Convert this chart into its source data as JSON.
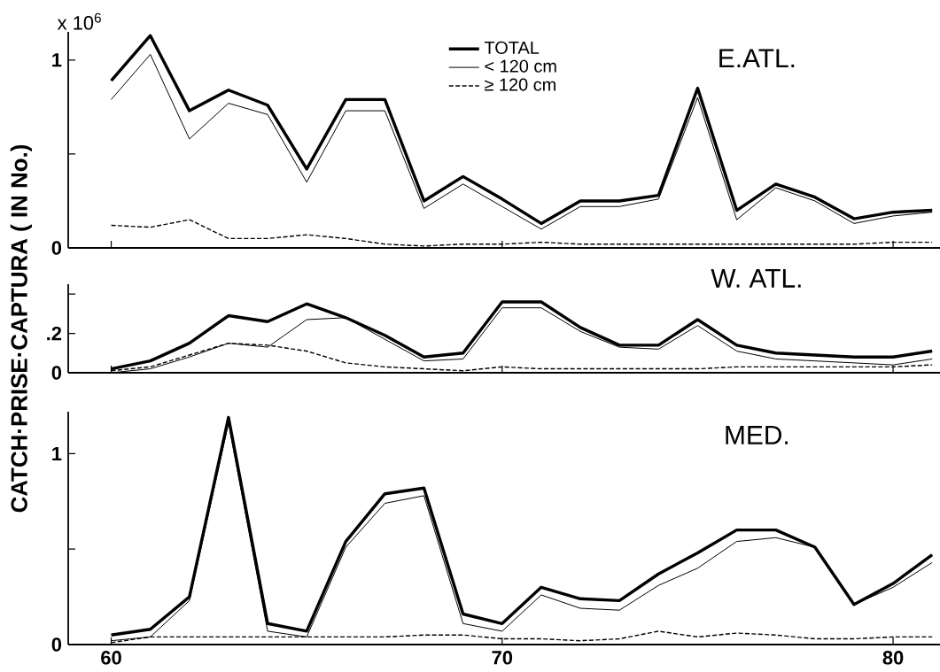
{
  "chart_data": [
    {
      "type": "line",
      "title": "E.ATL.",
      "annotations": [
        "x 10$^{6}$"
      ],
      "x": [
        60,
        61,
        62,
        63,
        64,
        65,
        66,
        67,
        68,
        69,
        70,
        71,
        72,
        73,
        74,
        75,
        76,
        77,
        78,
        79,
        80,
        81
      ],
      "xlim": [
        58.9,
        81.2
      ],
      "xticks": [
        60,
        70,
        80
      ],
      "ylim": [
        0,
        1.15
      ],
      "yticks": [
        0,
        {
          "value": 0.5,
          "label": null
        },
        1
      ],
      "tick_labels": "y",
      "legend": "top",
      "series": [
        {
          "name": "TOTAL",
          "color": "#000000",
          "line_style": "solid",
          "values": [
            0.89,
            1.13,
            0.73,
            0.84,
            0.76,
            0.42,
            0.79,
            0.79,
            0.25,
            0.38,
            0.26,
            0.13,
            0.25,
            0.25,
            0.28,
            0.85,
            0.2,
            0.34,
            0.27,
            0.155,
            0.19,
            0.2
          ]
        },
        {
          "name": "< 120 cm",
          "color": "#000000",
          "line_style": "solid",
          "values": [
            0.79,
            1.03,
            0.58,
            0.77,
            0.71,
            0.35,
            0.73,
            0.73,
            0.21,
            0.34,
            0.22,
            0.1,
            0.22,
            0.22,
            0.26,
            0.8,
            0.15,
            0.32,
            0.25,
            0.13,
            0.17,
            0.19
          ]
        },
        {
          "name": "≥ 120 cm",
          "color": "#000000",
          "line_style": "dashed",
          "values": [
            0.12,
            0.11,
            0.15,
            0.05,
            0.05,
            0.07,
            0.05,
            0.02,
            0.01,
            0.02,
            0.02,
            0.03,
            0.02,
            0.02,
            0.02,
            0.02,
            0.02,
            0.02,
            0.02,
            0.02,
            0.03,
            0.03
          ]
        }
      ]
    },
    {
      "type": "line",
      "title": "W. ATL.",
      "ylabel": "CATCH·PRISE·CAPTURA ( IN No.)",
      "x": [
        60,
        61,
        62,
        63,
        64,
        65,
        66,
        67,
        68,
        69,
        70,
        71,
        72,
        73,
        74,
        75,
        76,
        77,
        78,
        79,
        80,
        81
      ],
      "xlim": [
        58.9,
        81.2
      ],
      "xticks": [
        60,
        70,
        80
      ],
      "ylim": [
        0,
        0.45
      ],
      "yticks": [
        0,
        {
          "value": 0.2,
          "label": ".2"
        },
        {
          "value": 0.4,
          "label": null
        }
      ],
      "tick_labels": "y",
      "series": [
        {
          "color": "#000000",
          "line_style": "solid",
          "values": [
            0.02,
            0.06,
            0.15,
            0.29,
            0.26,
            0.35,
            0.28,
            0.19,
            0.08,
            0.1,
            0.36,
            0.36,
            0.23,
            0.14,
            0.14,
            0.27,
            0.14,
            0.1,
            0.09,
            0.08,
            0.08,
            0.11
          ]
        },
        {
          "color": "#000000",
          "line_style": "solid",
          "values": [
            0.0,
            0.02,
            0.08,
            0.15,
            0.13,
            0.27,
            0.28,
            0.17,
            0.06,
            0.07,
            0.33,
            0.33,
            0.21,
            0.13,
            0.12,
            0.24,
            0.11,
            0.07,
            0.06,
            0.05,
            0.04,
            0.07
          ]
        },
        {
          "color": "#000000",
          "line_style": "dashed",
          "values": [
            0.01,
            0.03,
            0.09,
            0.15,
            0.14,
            0.11,
            0.05,
            0.03,
            0.02,
            0.01,
            0.03,
            0.02,
            0.02,
            0.02,
            0.02,
            0.02,
            0.03,
            0.03,
            0.03,
            0.03,
            0.03,
            0.04
          ]
        }
      ]
    },
    {
      "type": "line",
      "title": "MED.",
      "x": [
        60,
        61,
        62,
        63,
        64,
        65,
        66,
        67,
        68,
        69,
        70,
        71,
        72,
        73,
        74,
        75,
        76,
        77,
        78,
        79,
        80,
        81
      ],
      "xlim": [
        58.9,
        81.2
      ],
      "xticks": [
        60,
        70,
        80
      ],
      "ylim": [
        0,
        1.22
      ],
      "yticks": [
        0,
        {
          "value": 0.5,
          "label": null
        },
        1
      ],
      "series": [
        {
          "color": "#000000",
          "line_style": "solid",
          "values": [
            0.05,
            0.08,
            0.25,
            1.19,
            0.11,
            0.07,
            0.54,
            0.79,
            0.82,
            0.16,
            0.11,
            0.3,
            0.24,
            0.23,
            0.37,
            0.48,
            0.6,
            0.6,
            0.51,
            0.21,
            0.32,
            0.47
          ]
        },
        {
          "color": "#000000",
          "line_style": "solid",
          "values": [
            0.02,
            0.04,
            0.23,
            1.16,
            0.07,
            0.04,
            0.51,
            0.74,
            0.78,
            0.11,
            0.07,
            0.26,
            0.19,
            0.18,
            0.31,
            0.4,
            0.54,
            0.56,
            0.51,
            0.21,
            0.3,
            0.43
          ]
        },
        {
          "color": "#000000",
          "line_style": "dashed",
          "values": [
            0.01,
            0.04,
            0.04,
            0.04,
            0.04,
            0.04,
            0.04,
            0.04,
            0.05,
            0.05,
            0.03,
            0.03,
            0.02,
            0.03,
            0.07,
            0.04,
            0.06,
            0.05,
            0.03,
            0.03,
            0.04,
            0.04
          ]
        }
      ]
    }
  ]
}
